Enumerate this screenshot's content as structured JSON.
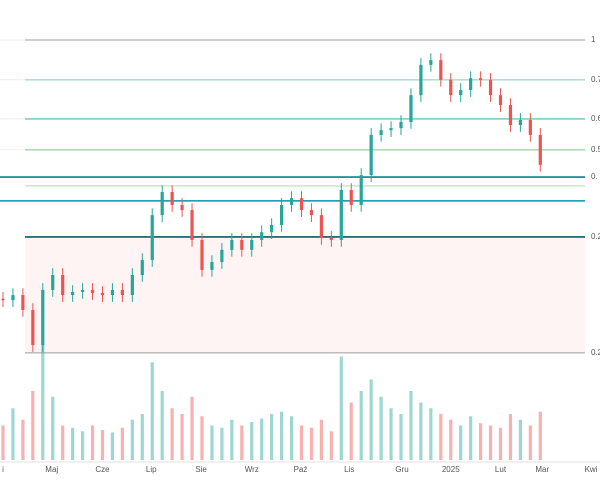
{
  "chart_data": {
    "type": "candlestick",
    "x": [
      0,
      1,
      2,
      3,
      4,
      5,
      6,
      7,
      8,
      9,
      10,
      11,
      12,
      13,
      14,
      15,
      16,
      17,
      18,
      19,
      20,
      21,
      22,
      23,
      24,
      25,
      26,
      27,
      28,
      29,
      30,
      31,
      32,
      33,
      34,
      35,
      36,
      37,
      38,
      39,
      40,
      41,
      42,
      43,
      44,
      45,
      46,
      47,
      48,
      49,
      50,
      51,
      52,
      53,
      54
    ],
    "open": [
      18,
      17.6,
      19.1,
      14.7,
      4.4,
      20.6,
      25,
      19.1,
      20,
      20.6,
      19.7,
      19.1,
      20.6,
      19.1,
      25,
      29.4,
      42.6,
      49.4,
      45.6,
      44.1,
      35.3,
      26.5,
      28.8,
      32.4,
      35.3,
      32.4,
      35.3,
      37.6,
      39.7,
      45.6,
      47.6,
      44.1,
      42.6,
      35.9,
      35.3,
      50,
      45.6,
      54.4,
      66.2,
      67.6,
      68.2,
      70,
      77.9,
      86.8,
      88.2,
      82.4,
      77.9,
      79.4,
      82.9,
      82.4,
      77.9,
      75,
      69.1,
      70.6,
      66.2
    ],
    "high": [
      20,
      21.1,
      21.1,
      16.7,
      22.6,
      27,
      27,
      22,
      22.6,
      22.6,
      21.7,
      22.6,
      22.6,
      27,
      31.4,
      44.6,
      51.4,
      51.4,
      47.6,
      46.1,
      37.3,
      30.8,
      34.4,
      37.3,
      37.3,
      37.3,
      39.6,
      41.7,
      47.6,
      49.6,
      49.6,
      46.1,
      44.6,
      37.9,
      52,
      52,
      56.4,
      68.2,
      69.6,
      70.2,
      72,
      79.9,
      88.8,
      90.2,
      90.2,
      84.4,
      81.4,
      84.9,
      84.9,
      84.4,
      79.9,
      77,
      72.6,
      72.6,
      68.2
    ],
    "low": [
      15.6,
      15.6,
      12.7,
      2.4,
      2.4,
      18.6,
      17.1,
      17.1,
      18,
      17.7,
      17.1,
      17.1,
      17.1,
      17.1,
      23,
      27.4,
      40.6,
      43.6,
      42.1,
      33.3,
      24.5,
      24.5,
      26.8,
      30.4,
      30.4,
      30.4,
      33.3,
      35.6,
      37.7,
      43.6,
      42.1,
      40.6,
      33.9,
      33.3,
      33.3,
      43.6,
      43.6,
      52.4,
      64.2,
      65.6,
      66.2,
      68,
      75.9,
      84.8,
      80.4,
      75.9,
      75.9,
      77.4,
      80.4,
      75.9,
      73,
      67.1,
      67.1,
      64.2,
      55.4
    ],
    "close": [
      17.6,
      19.1,
      14.7,
      4.4,
      20.6,
      25,
      19.1,
      20,
      20.6,
      19.7,
      19.1,
      20.6,
      19.1,
      25,
      29.4,
      42.6,
      49.4,
      45.6,
      44.1,
      35.3,
      26.5,
      28.8,
      32.4,
      35.3,
      32.4,
      35.3,
      37.6,
      39.7,
      45.6,
      47.6,
      44.1,
      42.6,
      35.9,
      35.3,
      50,
      45.6,
      54.4,
      66.2,
      67.6,
      68.2,
      70,
      77.9,
      86.8,
      88.2,
      82.4,
      77.9,
      79.4,
      82.9,
      82.4,
      77.9,
      75,
      69.1,
      70.6,
      66.2,
      57.4
    ],
    "volume": [
      30,
      45,
      35,
      60,
      100,
      55,
      30,
      28,
      25,
      30,
      26,
      24,
      28,
      35,
      40,
      85,
      60,
      45,
      40,
      55,
      38,
      30,
      28,
      35,
      30,
      33,
      36,
      40,
      42,
      38,
      30,
      28,
      35,
      25,
      90,
      50,
      60,
      70,
      55,
      45,
      40,
      60,
      50,
      45,
      40,
      35,
      30,
      38,
      32,
      30,
      28,
      40,
      35,
      30,
      42
    ],
    "up_color": "#26a69a",
    "down_color": "#ef5350",
    "xlim": [
      -0.3,
      60
    ],
    "ylim": [
      0,
      100
    ],
    "volume_lim": [
      0,
      100
    ],
    "xticks": [
      {
        "value": 0,
        "label": "i"
      },
      {
        "value": 4.9,
        "label": "Maj"
      },
      {
        "value": 10,
        "label": "Cze"
      },
      {
        "value": 14.9,
        "label": "Lip"
      },
      {
        "value": 19.9,
        "label": "Sie"
      },
      {
        "value": 25,
        "label": "Wrz"
      },
      {
        "value": 29.9,
        "label": "Paź"
      },
      {
        "value": 34.8,
        "label": "Lis"
      },
      {
        "value": 40.1,
        "label": "Gru"
      },
      {
        "value": 45,
        "label": "2025"
      },
      {
        "value": 50,
        "label": "Lut"
      },
      {
        "value": 54.2,
        "label": "Mar"
      },
      {
        "value": 59.1,
        "label": "Kwi"
      }
    ],
    "levels": [
      {
        "value": 94.1,
        "label": "1",
        "color": "#9e9e9e",
        "width": 1
      },
      {
        "value": 82.4,
        "label": "0.7",
        "color": "#80cbc4",
        "width": 1
      },
      {
        "value": 70.9,
        "label": "0.6",
        "color": "#4db6ac",
        "width": 1.2
      },
      {
        "value": 61.8,
        "label": "0.5",
        "color": "#81c784",
        "width": 1
      },
      {
        "value": 53.8,
        "label": "0.",
        "color": "#00838f",
        "width": 1.6
      },
      {
        "value": 51.2,
        "color": "#a5d6a7",
        "width": 0.8
      },
      {
        "value": 46.8,
        "color": "#0097a7",
        "width": 1.6
      },
      {
        "value": 36.2,
        "label": "0.2",
        "color": "#006064",
        "width": 1.6
      },
      {
        "value": 2.1,
        "label": "0.2",
        "color": "#9e9e9e",
        "width": 1
      }
    ]
  }
}
